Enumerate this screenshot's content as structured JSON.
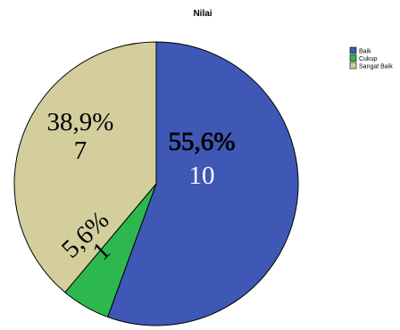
{
  "chart_data": {
    "type": "pie",
    "title": "Nilai",
    "categories": [
      "Baik",
      "Cukup",
      "Sangat Baik"
    ],
    "values": [
      10,
      1,
      7
    ],
    "percent_labels": [
      "55,6%",
      "5,6%",
      "38,9%"
    ],
    "count_labels": [
      "10",
      "1",
      "7"
    ],
    "colors": [
      "#3f58b5",
      "#2db84f",
      "#d3ce9c"
    ],
    "legend_position": "top-right"
  }
}
